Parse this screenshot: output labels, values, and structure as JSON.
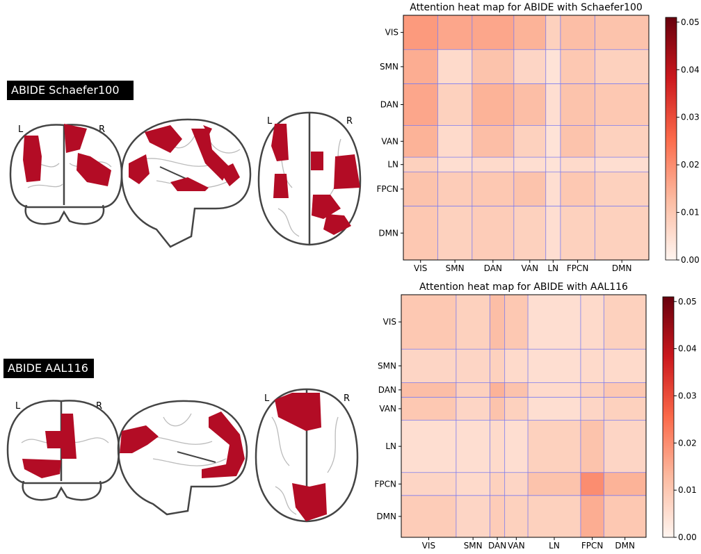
{
  "brain_panels": [
    {
      "label": "ABIDE Schaefer100",
      "coronal": [
        "L",
        "R"
      ],
      "axial": [
        "L",
        "R"
      ]
    },
    {
      "label": "ABIDE AAL116",
      "coronal": [
        "L",
        "R"
      ],
      "axial": [
        "L",
        "R"
      ]
    }
  ],
  "chart_data": [
    {
      "type": "heatmap",
      "title": "Attention heat map for ABIDE with Schaefer100",
      "categories": [
        "VIS",
        "SMN",
        "DAN",
        "VAN",
        "LN",
        "FPCN",
        "DMN"
      ],
      "group_sizes": [
        14,
        14,
        17,
        13,
        6,
        14,
        22
      ],
      "values": [
        [
          0.018,
          0.016,
          0.016,
          0.014,
          0.008,
          0.012,
          0.011
        ],
        [
          0.015,
          0.006,
          0.011,
          0.007,
          0.004,
          0.01,
          0.008
        ],
        [
          0.016,
          0.008,
          0.014,
          0.012,
          0.005,
          0.011,
          0.01
        ],
        [
          0.014,
          0.006,
          0.012,
          0.008,
          0.004,
          0.011,
          0.008
        ],
        [
          0.008,
          0.005,
          0.006,
          0.005,
          0.004,
          0.006,
          0.005
        ],
        [
          0.011,
          0.009,
          0.01,
          0.011,
          0.005,
          0.01,
          0.008
        ],
        [
          0.01,
          0.008,
          0.009,
          0.008,
          0.005,
          0.008,
          0.008
        ]
      ],
      "zlim": [
        0,
        0.051
      ],
      "zticks": [
        {
          "value": 0,
          "label": "0.00"
        },
        {
          "value": 0.01,
          "label": "0.01"
        },
        {
          "value": 0.02,
          "label": "0.02"
        },
        {
          "value": 0.03,
          "label": "0.03"
        },
        {
          "value": 0.04,
          "label": "0.04"
        },
        {
          "value": 0.05,
          "label": "0.05"
        }
      ],
      "cmap": [
        "#fff5f0",
        "#fcbba1",
        "#fb6a4a",
        "#cb181d",
        "#67000d"
      ],
      "grid_color": "#7b7bf0"
    },
    {
      "type": "heatmap",
      "title": "Attention heat map for ABIDE with AAL116",
      "categories": [
        "VIS",
        "SMN",
        "DAN",
        "VAN",
        "LN",
        "FPCN",
        "DMN"
      ],
      "group_sizes": [
        26,
        16,
        7,
        11,
        25,
        11,
        20
      ],
      "values": [
        [
          0.01,
          0.008,
          0.012,
          0.01,
          0.005,
          0.006,
          0.008
        ],
        [
          0.007,
          0.007,
          0.008,
          0.006,
          0.005,
          0.006,
          0.006
        ],
        [
          0.012,
          0.008,
          0.014,
          0.011,
          0.006,
          0.008,
          0.01
        ],
        [
          0.01,
          0.007,
          0.011,
          0.008,
          0.005,
          0.007,
          0.008
        ],
        [
          0.005,
          0.005,
          0.006,
          0.005,
          0.008,
          0.011,
          0.007
        ],
        [
          0.007,
          0.006,
          0.008,
          0.007,
          0.011,
          0.02,
          0.014
        ],
        [
          0.009,
          0.007,
          0.009,
          0.008,
          0.008,
          0.015,
          0.01
        ]
      ],
      "zlim": [
        0,
        0.051
      ],
      "zticks": [
        {
          "value": 0,
          "label": "0.00"
        },
        {
          "value": 0.01,
          "label": "0.01"
        },
        {
          "value": 0.02,
          "label": "0.02"
        },
        {
          "value": 0.03,
          "label": "0.03"
        },
        {
          "value": 0.04,
          "label": "0.04"
        },
        {
          "value": 0.05,
          "label": "0.05"
        }
      ],
      "cmap": [
        "#fff5f0",
        "#fcbba1",
        "#fb6a4a",
        "#cb181d",
        "#67000d"
      ],
      "grid_color": "#7b7bf0"
    }
  ]
}
